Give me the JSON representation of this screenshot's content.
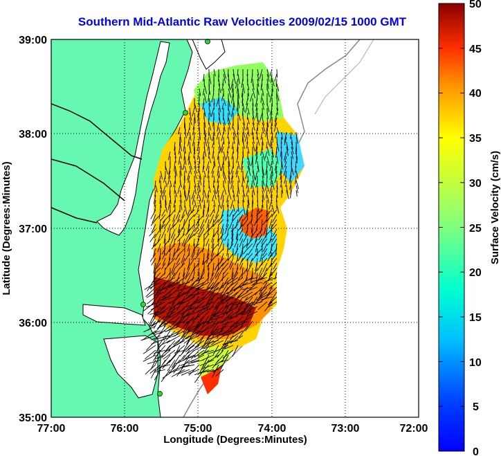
{
  "title": "Southern Mid-Atlantic Raw Velocities 2009/02/15 1000 GMT",
  "xlabel": "Longitude (Degrees:Minutes)",
  "ylabel": "Latitude (Degrees:Minutes)",
  "x_ticks": [
    "77:00",
    "76:00",
    "75:00",
    "74:00",
    "73:00",
    "72:00"
  ],
  "y_ticks": [
    "39:00",
    "38:00",
    "37:00",
    "36:00",
    "35:00"
  ],
  "colorbar": {
    "label": "Surface Velocity (cm/s)",
    "ticks": [
      "50",
      "45",
      "40",
      "35",
      "30",
      "25",
      "20",
      "15",
      "10",
      "5",
      "0"
    ],
    "range": [
      0,
      50
    ],
    "colormap": "jet"
  },
  "colors": {
    "land": "#66f7b0",
    "title": "#0000ee",
    "vector": "#000000",
    "site_marker": "#22dd33",
    "bathymetry": "#888888"
  },
  "chart_data": {
    "type": "map-vector-field",
    "xlim": [
      -77.0,
      -72.0
    ],
    "ylim": [
      35.0,
      39.0
    ],
    "grid": true,
    "legend": "colorbar-right"
  }
}
